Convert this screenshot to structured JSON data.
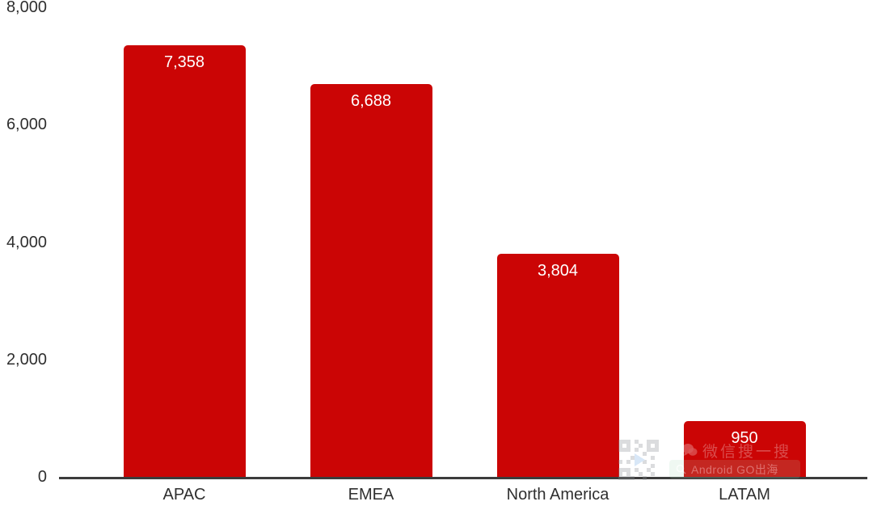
{
  "chart_data": {
    "type": "bar",
    "categories": [
      "APAC",
      "EMEA",
      "North America",
      "LATAM"
    ],
    "values": [
      7358,
      6688,
      3804,
      950
    ],
    "value_labels": [
      "7,358",
      "6,688",
      "3,804",
      "950"
    ],
    "title": "",
    "xlabel": "",
    "ylabel": "",
    "ylim": [
      0,
      8000
    ],
    "yticks": [
      {
        "value": 0,
        "label": "0"
      },
      {
        "value": 2000,
        "label": "2,000"
      },
      {
        "value": 4000,
        "label": "4,000"
      },
      {
        "value": 6000,
        "label": "6,000"
      },
      {
        "value": 8000,
        "label": "8,000"
      }
    ],
    "grid": false,
    "legend": "none",
    "colors": {
      "bar": "#CB0505",
      "bar_label": "#FFFFFF",
      "axis": "#3C3C3C",
      "tick_text": "#2F2F2F",
      "background": "#FFFFFF"
    }
  },
  "watermark": {
    "wechat_label": "微信搜一搜",
    "search_label": "Android GO出海"
  }
}
